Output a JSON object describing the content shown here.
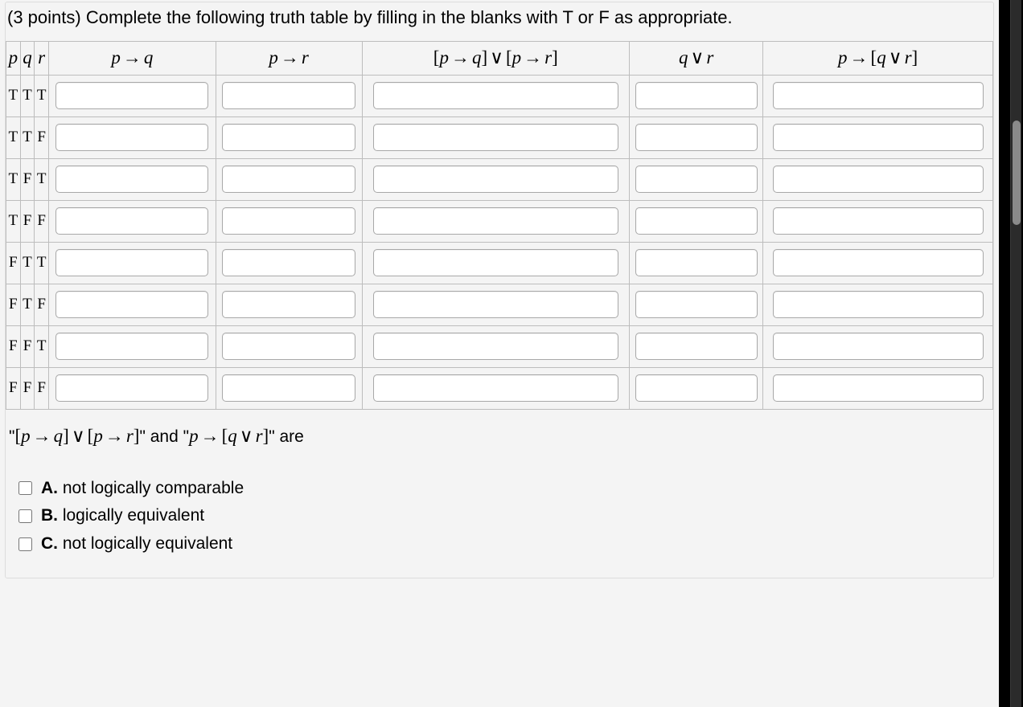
{
  "prompt": "(3 points) Complete the following truth table by filling in the blanks with T or F as appropriate.",
  "headers": {
    "p": "p",
    "q": "q",
    "r": "r",
    "c1": "p → q",
    "c2": "p → r",
    "c3": "[p → q] ∨ [p → r]",
    "c4": "q ∨ r",
    "c5": "p → [q ∨ r]"
  },
  "rows": [
    {
      "p": "T",
      "q": "T",
      "r": "T",
      "a1": "",
      "a2": "",
      "a3": "",
      "a4": "",
      "a5": ""
    },
    {
      "p": "T",
      "q": "T",
      "r": "F",
      "a1": "",
      "a2": "",
      "a3": "",
      "a4": "",
      "a5": ""
    },
    {
      "p": "T",
      "q": "F",
      "r": "T",
      "a1": "",
      "a2": "",
      "a3": "",
      "a4": "",
      "a5": ""
    },
    {
      "p": "T",
      "q": "F",
      "r": "F",
      "a1": "",
      "a2": "",
      "a3": "",
      "a4": "",
      "a5": ""
    },
    {
      "p": "F",
      "q": "T",
      "r": "T",
      "a1": "",
      "a2": "",
      "a3": "",
      "a4": "",
      "a5": ""
    },
    {
      "p": "F",
      "q": "T",
      "r": "F",
      "a1": "",
      "a2": "",
      "a3": "",
      "a4": "",
      "a5": ""
    },
    {
      "p": "F",
      "q": "F",
      "r": "T",
      "a1": "",
      "a2": "",
      "a3": "",
      "a4": "",
      "a5": ""
    },
    {
      "p": "F",
      "q": "F",
      "r": "F",
      "a1": "",
      "a2": "",
      "a3": "",
      "a4": "",
      "a5": ""
    }
  ],
  "statement": {
    "prefix": "\"",
    "expr1": "[p → q] ∨ [p → r]",
    "mid": "\" and \"",
    "expr2": "p → [q ∨ r]",
    "suffix": "\" are"
  },
  "choices": [
    {
      "letter": "A.",
      "text": " not logically comparable"
    },
    {
      "letter": "B.",
      "text": " logically equivalent"
    },
    {
      "letter": "C.",
      "text": " not logically equivalent"
    }
  ],
  "style": {
    "background": "#f4f4f4",
    "border_color": "#bdbdbd",
    "input_border": "#a8a8a8",
    "scrollbar_thumb": "#8a8a8a",
    "right_gutter": "#000000"
  }
}
